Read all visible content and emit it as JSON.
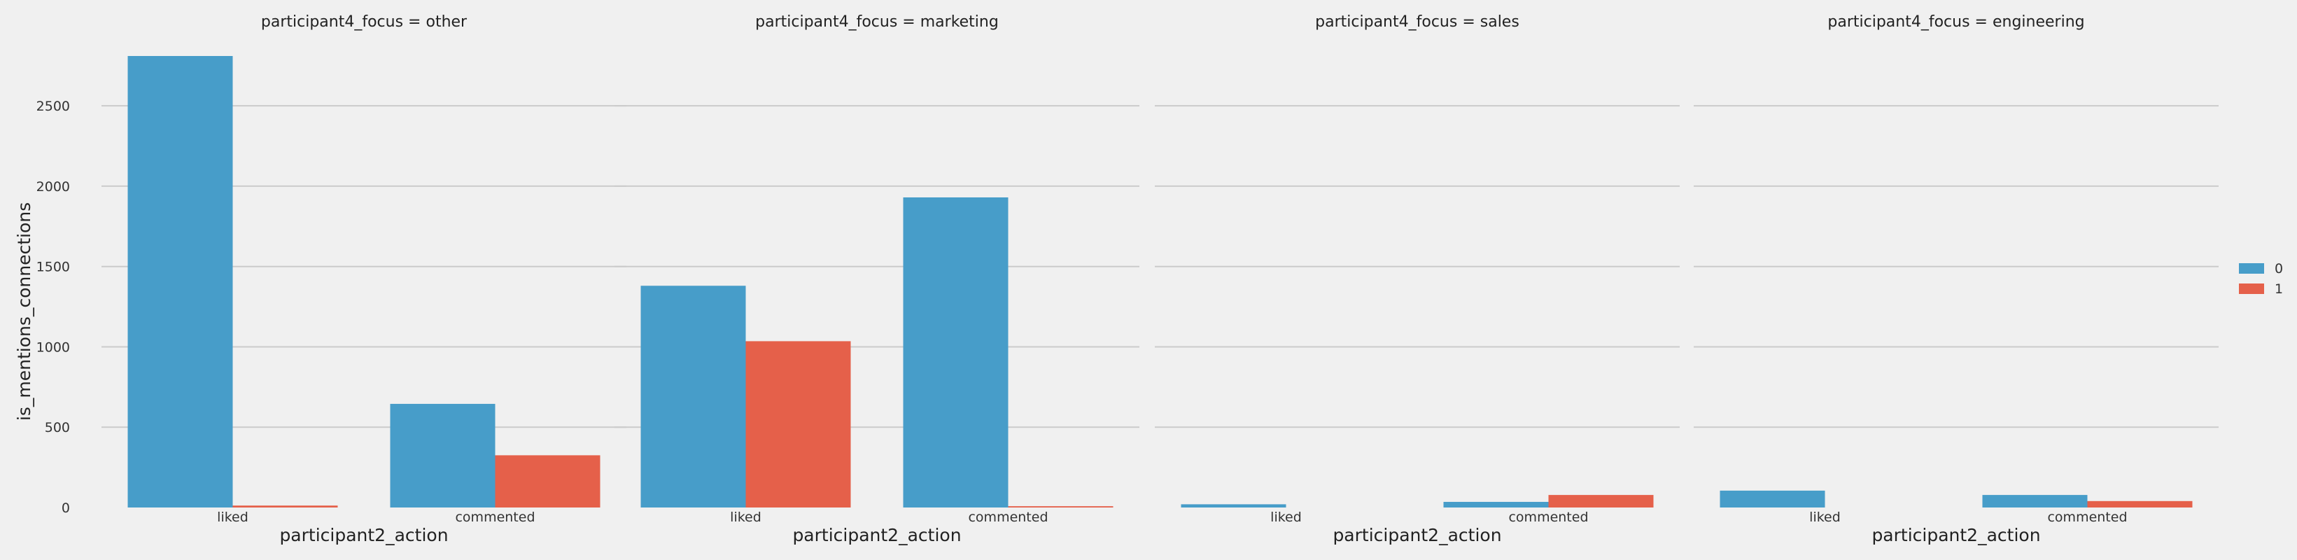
{
  "chart_data": {
    "type": "bar",
    "facet_variable": "participant4_focus",
    "panels": [
      {
        "title": "participant4_focus = other",
        "series": [
          {
            "name": "0",
            "values": [
              2810,
              645
            ]
          },
          {
            "name": "1",
            "values": [
              12,
              325
            ]
          }
        ]
      },
      {
        "title": "participant4_focus = marketing",
        "series": [
          {
            "name": "0",
            "values": [
              1380,
              1930
            ]
          },
          {
            "name": "1",
            "values": [
              1035,
              8
            ]
          }
        ]
      },
      {
        "title": "participant4_focus = sales",
        "series": [
          {
            "name": "0",
            "values": [
              20,
              35
            ]
          },
          {
            "name": "1",
            "values": [
              0,
              78
            ]
          }
        ]
      },
      {
        "title": "participant4_focus = engineering",
        "series": [
          {
            "name": "0",
            "values": [
              105,
              78
            ]
          },
          {
            "name": "1",
            "values": [
              0,
              40
            ]
          }
        ]
      }
    ],
    "categories": [
      "liked",
      "commented"
    ],
    "xlabel": "participant2_action",
    "ylabel": "is_mentions_connections",
    "yticks": [
      0,
      500,
      1000,
      1500,
      2000,
      2500
    ],
    "ylim": [
      0,
      2810
    ],
    "legend": {
      "entries": [
        "0",
        "1"
      ],
      "placement": "right"
    },
    "grid": true,
    "colors": {
      "series_0": "#479dc9",
      "series_1": "#e5604a",
      "grid": "#cbcbcb",
      "background": "#f0f0f0"
    }
  }
}
